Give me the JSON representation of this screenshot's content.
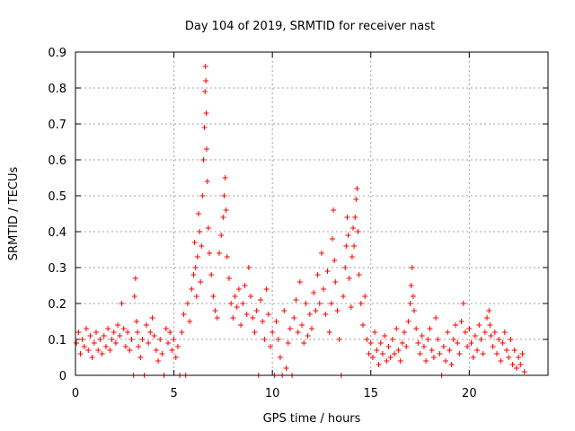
{
  "chart_data": {
    "type": "scatter",
    "title": "Day 104 of 2019, SRMTID for receiver nast",
    "xlabel": "GPS time / hours",
    "ylabel": "SRMTID / TECUs",
    "xlim": [
      0,
      24
    ],
    "ylim": [
      0,
      0.9
    ],
    "xticks": [
      0,
      5,
      10,
      15,
      20
    ],
    "xtick_labels": [
      "0",
      "5",
      "10",
      "15",
      "20"
    ],
    "yticks": [
      0,
      0.1,
      0.2,
      0.3,
      0.4,
      0.5,
      0.6,
      0.7,
      0.8,
      0.9
    ],
    "ytick_labels": [
      "0",
      "0.1",
      "0.2",
      "0.3",
      "0.4",
      "0.5",
      "0.6",
      "0.7",
      "0.8",
      "0.9"
    ],
    "grid": true,
    "marker": "+",
    "color": "#ff0000",
    "series": [
      {
        "name": "SRMTID",
        "points": [
          [
            0.05,
            0.09
          ],
          [
            0.15,
            0.12
          ],
          [
            0.25,
            0.06
          ],
          [
            0.35,
            0.1
          ],
          [
            0.45,
            0.08
          ],
          [
            0.55,
            0.13
          ],
          [
            0.65,
            0.07
          ],
          [
            0.75,
            0.11
          ],
          [
            0.85,
            0.05
          ],
          [
            0.95,
            0.09
          ],
          [
            1.05,
            0.12
          ],
          [
            1.15,
            0.07
          ],
          [
            1.25,
            0.1
          ],
          [
            1.35,
            0.06
          ],
          [
            1.45,
            0.11
          ],
          [
            1.55,
            0.08
          ],
          [
            1.65,
            0.13
          ],
          [
            1.75,
            0.07
          ],
          [
            1.85,
            0.1
          ],
          [
            1.95,
            0.12
          ],
          [
            2.05,
            0.09
          ],
          [
            2.15,
            0.14
          ],
          [
            2.25,
            0.11
          ],
          [
            2.35,
            0.2
          ],
          [
            2.45,
            0.13
          ],
          [
            2.55,
            0.08
          ],
          [
            2.65,
            0.12
          ],
          [
            2.75,
            0.07
          ],
          [
            2.85,
            0.1
          ],
          [
            2.95,
            0.0
          ],
          [
            3.0,
            0.22
          ],
          [
            3.05,
            0.27
          ],
          [
            3.1,
            0.15
          ],
          [
            3.15,
            0.12
          ],
          [
            3.2,
            0.08
          ],
          [
            3.3,
            0.05
          ],
          [
            3.4,
            0.1
          ],
          [
            3.5,
            0.0
          ],
          [
            3.6,
            0.14
          ],
          [
            3.7,
            0.09
          ],
          [
            3.8,
            0.12
          ],
          [
            3.9,
            0.16
          ],
          [
            4.0,
            0.11
          ],
          [
            4.1,
            0.07
          ],
          [
            4.2,
            0.04
          ],
          [
            4.3,
            0.1
          ],
          [
            4.4,
            0.06
          ],
          [
            4.5,
            0.0
          ],
          [
            4.6,
            0.13
          ],
          [
            4.7,
            0.09
          ],
          [
            4.8,
            0.12
          ],
          [
            4.9,
            0.07
          ],
          [
            5.0,
            0.1
          ],
          [
            5.1,
            0.05
          ],
          [
            5.2,
            0.08
          ],
          [
            5.3,
            0.0
          ],
          [
            5.4,
            0.12
          ],
          [
            5.5,
            0.17
          ],
          [
            5.6,
            0.0
          ],
          [
            5.7,
            0.2
          ],
          [
            5.8,
            0.15
          ],
          [
            5.9,
            0.24
          ],
          [
            6.0,
            0.28
          ],
          [
            6.05,
            0.37
          ],
          [
            6.1,
            0.3
          ],
          [
            6.15,
            0.22
          ],
          [
            6.2,
            0.33
          ],
          [
            6.25,
            0.45
          ],
          [
            6.3,
            0.4
          ],
          [
            6.35,
            0.26
          ],
          [
            6.4,
            0.36
          ],
          [
            6.45,
            0.5
          ],
          [
            6.5,
            0.6
          ],
          [
            6.55,
            0.69
          ],
          [
            6.58,
            0.79
          ],
          [
            6.6,
            0.86
          ],
          [
            6.62,
            0.82
          ],
          [
            6.64,
            0.73
          ],
          [
            6.66,
            0.63
          ],
          [
            6.7,
            0.54
          ],
          [
            6.75,
            0.41
          ],
          [
            6.8,
            0.34
          ],
          [
            6.9,
            0.28
          ],
          [
            7.0,
            0.22
          ],
          [
            7.1,
            0.18
          ],
          [
            7.2,
            0.16
          ],
          [
            7.3,
            0.34
          ],
          [
            7.4,
            0.39
          ],
          [
            7.5,
            0.44
          ],
          [
            7.55,
            0.5
          ],
          [
            7.6,
            0.55
          ],
          [
            7.65,
            0.46
          ],
          [
            7.7,
            0.33
          ],
          [
            7.8,
            0.27
          ],
          [
            7.9,
            0.2
          ],
          [
            8.0,
            0.16
          ],
          [
            8.1,
            0.22
          ],
          [
            8.2,
            0.19
          ],
          [
            8.3,
            0.24
          ],
          [
            8.4,
            0.14
          ],
          [
            8.5,
            0.2
          ],
          [
            8.6,
            0.25
          ],
          [
            8.7,
            0.17
          ],
          [
            8.8,
            0.3
          ],
          [
            8.9,
            0.22
          ],
          [
            9.0,
            0.16
          ],
          [
            9.1,
            0.12
          ],
          [
            9.2,
            0.18
          ],
          [
            9.3,
            0.0
          ],
          [
            9.4,
            0.21
          ],
          [
            9.5,
            0.15
          ],
          [
            9.6,
            0.1
          ],
          [
            9.7,
            0.24
          ],
          [
            9.8,
            0.17
          ],
          [
            9.9,
            0.08
          ],
          [
            10.0,
            0.12
          ],
          [
            10.1,
            0.0
          ],
          [
            10.2,
            0.15
          ],
          [
            10.3,
            0.1
          ],
          [
            10.4,
            0.05
          ],
          [
            10.5,
            0.0
          ],
          [
            10.6,
            0.18
          ],
          [
            10.7,
            0.02
          ],
          [
            10.8,
            0.09
          ],
          [
            10.9,
            0.13
          ],
          [
            11.0,
            0.0
          ],
          [
            11.1,
            0.16
          ],
          [
            11.2,
            0.21
          ],
          [
            11.3,
            0.12
          ],
          [
            11.4,
            0.26
          ],
          [
            11.5,
            0.14
          ],
          [
            11.6,
            0.09
          ],
          [
            11.7,
            0.2
          ],
          [
            11.8,
            0.11
          ],
          [
            11.9,
            0.17
          ],
          [
            12.0,
            0.13
          ],
          [
            12.1,
            0.23
          ],
          [
            12.2,
            0.18
          ],
          [
            12.3,
            0.28
          ],
          [
            12.4,
            0.2
          ],
          [
            12.5,
            0.34
          ],
          [
            12.6,
            0.24
          ],
          [
            12.7,
            0.17
          ],
          [
            12.8,
            0.29
          ],
          [
            12.9,
            0.12
          ],
          [
            13.0,
            0.2
          ],
          [
            13.05,
            0.38
          ],
          [
            13.1,
            0.46
          ],
          [
            13.15,
            0.32
          ],
          [
            13.2,
            0.26
          ],
          [
            13.3,
            0.18
          ],
          [
            13.4,
            0.1
          ],
          [
            13.5,
            0.0
          ],
          [
            13.6,
            0.22
          ],
          [
            13.7,
            0.3
          ],
          [
            13.75,
            0.36
          ],
          [
            13.8,
            0.44
          ],
          [
            13.85,
            0.39
          ],
          [
            13.9,
            0.27
          ],
          [
            14.0,
            0.19
          ],
          [
            14.05,
            0.33
          ],
          [
            14.1,
            0.41
          ],
          [
            14.15,
            0.36
          ],
          [
            14.2,
            0.44
          ],
          [
            14.25,
            0.49
          ],
          [
            14.3,
            0.52
          ],
          [
            14.35,
            0.4
          ],
          [
            14.4,
            0.28
          ],
          [
            14.5,
            0.2
          ],
          [
            14.6,
            0.14
          ],
          [
            14.7,
            0.22
          ],
          [
            14.8,
            0.1
          ],
          [
            14.9,
            0.06
          ],
          [
            15.0,
            0.09
          ],
          [
            15.1,
            0.05
          ],
          [
            15.2,
            0.12
          ],
          [
            15.3,
            0.07
          ],
          [
            15.4,
            0.03
          ],
          [
            15.5,
            0.09
          ],
          [
            15.6,
            0.06
          ],
          [
            15.7,
            0.11
          ],
          [
            15.8,
            0.04
          ],
          [
            15.9,
            0.08
          ],
          [
            16.0,
            0.05
          ],
          [
            16.1,
            0.1
          ],
          [
            16.2,
            0.06
          ],
          [
            16.3,
            0.13
          ],
          [
            16.4,
            0.07
          ],
          [
            16.5,
            0.04
          ],
          [
            16.6,
            0.09
          ],
          [
            16.7,
            0.12
          ],
          [
            16.8,
            0.08
          ],
          [
            16.9,
            0.15
          ],
          [
            17.0,
            0.2
          ],
          [
            17.05,
            0.25
          ],
          [
            17.1,
            0.3
          ],
          [
            17.15,
            0.22
          ],
          [
            17.2,
            0.18
          ],
          [
            17.3,
            0.13
          ],
          [
            17.4,
            0.09
          ],
          [
            17.5,
            0.06
          ],
          [
            17.6,
            0.11
          ],
          [
            17.7,
            0.08
          ],
          [
            17.8,
            0.04
          ],
          [
            17.9,
            0.1
          ],
          [
            18.0,
            0.13
          ],
          [
            18.1,
            0.07
          ],
          [
            18.2,
            0.05
          ],
          [
            18.3,
            0.16
          ],
          [
            18.4,
            0.1
          ],
          [
            18.5,
            0.06
          ],
          [
            18.6,
            0.0
          ],
          [
            18.7,
            0.08
          ],
          [
            18.8,
            0.04
          ],
          [
            18.9,
            0.12
          ],
          [
            19.0,
            0.07
          ],
          [
            19.1,
            0.03
          ],
          [
            19.2,
            0.1
          ],
          [
            19.3,
            0.14
          ],
          [
            19.4,
            0.09
          ],
          [
            19.5,
            0.06
          ],
          [
            19.6,
            0.15
          ],
          [
            19.7,
            0.2
          ],
          [
            19.8,
            0.12
          ],
          [
            19.9,
            0.08
          ],
          [
            20.0,
            0.13
          ],
          [
            20.1,
            0.09
          ],
          [
            20.2,
            0.05
          ],
          [
            20.3,
            0.11
          ],
          [
            20.4,
            0.07
          ],
          [
            20.5,
            0.14
          ],
          [
            20.6,
            0.1
          ],
          [
            20.7,
            0.06
          ],
          [
            20.8,
            0.12
          ],
          [
            20.9,
            0.16
          ],
          [
            21.0,
            0.18
          ],
          [
            21.05,
            0.14
          ],
          [
            21.1,
            0.11
          ],
          [
            21.2,
            0.08
          ],
          [
            21.3,
            0.12
          ],
          [
            21.4,
            0.06
          ],
          [
            21.5,
            0.1
          ],
          [
            21.6,
            0.04
          ],
          [
            21.7,
            0.09
          ],
          [
            21.8,
            0.12
          ],
          [
            21.9,
            0.07
          ],
          [
            22.0,
            0.05
          ],
          [
            22.1,
            0.1
          ],
          [
            22.2,
            0.03
          ],
          [
            22.3,
            0.07
          ],
          [
            22.4,
            0.02
          ],
          [
            22.5,
            0.05
          ],
          [
            22.6,
            0.03
          ],
          [
            22.7,
            0.06
          ],
          [
            22.8,
            0.01
          ]
        ]
      }
    ]
  }
}
